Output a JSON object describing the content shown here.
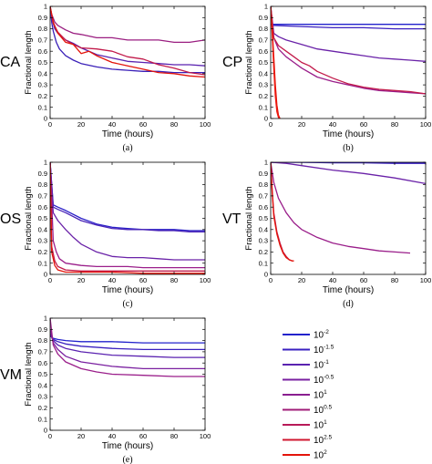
{
  "chart_data": [
    {
      "panel": "a",
      "tag": "CA",
      "caption": "(a)",
      "type": "line",
      "xlabel": "Time (hours)",
      "ylabel": "Fractional length",
      "xlim": [
        0,
        100
      ],
      "ylim": [
        0,
        1
      ],
      "xticks": [
        "0",
        "20",
        "40",
        "60",
        "80",
        "100"
      ],
      "yticks": [
        "0",
        "0.1",
        "0.2",
        "0.3",
        "0.4",
        "0.5",
        "0.6",
        "0.7",
        "0.8",
        "0.9",
        "1"
      ],
      "series": [
        {
          "color": "#3a20b8",
          "x": [
            0,
            1,
            2,
            4,
            6,
            10,
            15,
            20,
            30,
            40,
            50,
            60,
            70,
            80,
            90,
            100
          ],
          "y": [
            1,
            0.86,
            0.78,
            0.68,
            0.62,
            0.56,
            0.52,
            0.49,
            0.46,
            0.44,
            0.43,
            0.42,
            0.42,
            0.41,
            0.41,
            0.41
          ]
        },
        {
          "color": "#5a22b0",
          "x": [
            0,
            1,
            3,
            5,
            10,
            15,
            20,
            30,
            40,
            50,
            60,
            70,
            80,
            90,
            100
          ],
          "y": [
            1,
            0.9,
            0.8,
            0.76,
            0.7,
            0.67,
            0.63,
            0.57,
            0.54,
            0.51,
            0.5,
            0.49,
            0.48,
            0.48,
            0.47
          ]
        },
        {
          "color": "#9a1e80",
          "x": [
            0,
            1,
            3,
            5,
            10,
            15,
            20,
            30,
            40,
            50,
            60,
            70,
            80,
            90,
            100
          ],
          "y": [
            1,
            0.93,
            0.86,
            0.83,
            0.79,
            0.76,
            0.75,
            0.72,
            0.72,
            0.7,
            0.7,
            0.7,
            0.68,
            0.68,
            0.7
          ]
        },
        {
          "color": "#c21a4a",
          "x": [
            0,
            2,
            5,
            10,
            15,
            20,
            30,
            40,
            50,
            60,
            70,
            80,
            90,
            100
          ],
          "y": [
            1,
            0.85,
            0.77,
            0.7,
            0.66,
            0.63,
            0.62,
            0.6,
            0.55,
            0.53,
            0.48,
            0.45,
            0.41,
            0.39
          ]
        },
        {
          "color": "#e3140a",
          "x": [
            0,
            2,
            5,
            10,
            15,
            20,
            25,
            30,
            40,
            50,
            60,
            70,
            80,
            90,
            100
          ],
          "y": [
            1,
            0.86,
            0.76,
            0.68,
            0.66,
            0.58,
            0.6,
            0.56,
            0.5,
            0.47,
            0.44,
            0.41,
            0.4,
            0.38,
            0.37
          ]
        }
      ]
    },
    {
      "panel": "b",
      "tag": "CP",
      "caption": "(b)",
      "type": "line",
      "xlabel": "Time (hours)",
      "ylabel": "Fractional length",
      "xlim": [
        0,
        100
      ],
      "ylim": [
        0,
        1
      ],
      "xticks": [
        "0",
        "20",
        "40",
        "60",
        "80",
        "100"
      ],
      "yticks": [
        "0",
        "0.1",
        "0.2",
        "0.3",
        "0.4",
        "0.5",
        "0.6",
        "0.7",
        "0.8",
        "0.9",
        "1"
      ],
      "series": [
        {
          "color": "#2222cc",
          "x": [
            0,
            1,
            20,
            40,
            60,
            80,
            100
          ],
          "y": [
            0.84,
            0.84,
            0.84,
            0.84,
            0.84,
            0.84,
            0.84
          ]
        },
        {
          "color": "#3a20c0",
          "x": [
            0,
            1,
            20,
            40,
            60,
            80,
            100
          ],
          "y": [
            0.84,
            0.83,
            0.82,
            0.81,
            0.81,
            0.8,
            0.8
          ]
        },
        {
          "color": "#6a22a8",
          "x": [
            0,
            2,
            5,
            10,
            20,
            30,
            40,
            50,
            60,
            70,
            80,
            90,
            100
          ],
          "y": [
            1,
            0.76,
            0.73,
            0.7,
            0.66,
            0.62,
            0.6,
            0.58,
            0.56,
            0.54,
            0.53,
            0.52,
            0.51
          ]
        },
        {
          "color": "#9a1e8a",
          "x": [
            0,
            2,
            5,
            10,
            15,
            20,
            30,
            40,
            50,
            60,
            70,
            80,
            90,
            100
          ],
          "y": [
            1,
            0.72,
            0.62,
            0.55,
            0.5,
            0.45,
            0.37,
            0.33,
            0.3,
            0.27,
            0.25,
            0.24,
            0.23,
            0.22
          ]
        },
        {
          "color": "#c21a4a",
          "x": [
            0,
            2,
            5,
            10,
            15,
            20,
            25,
            30,
            40,
            50,
            60,
            70,
            80,
            90,
            100
          ],
          "y": [
            1,
            0.72,
            0.65,
            0.6,
            0.55,
            0.5,
            0.47,
            0.42,
            0.36,
            0.31,
            0.28,
            0.26,
            0.25,
            0.24,
            0.22
          ]
        },
        {
          "color": "#e3140a",
          "x": [
            0,
            1,
            2,
            3,
            4,
            5,
            6
          ],
          "y": [
            1,
            0.8,
            0.55,
            0.3,
            0.12,
            0.03,
            0
          ]
        },
        {
          "color": "#ee1a10",
          "x": [
            0,
            1,
            2,
            3,
            4,
            5,
            6
          ],
          "y": [
            1,
            0.75,
            0.45,
            0.2,
            0.06,
            0.01,
            0
          ]
        }
      ]
    },
    {
      "panel": "c",
      "tag": "OS",
      "caption": "(c)",
      "type": "line",
      "xlabel": "Time (hours)",
      "ylabel": "Fractional length",
      "xlim": [
        0,
        100
      ],
      "ylim": [
        0,
        1
      ],
      "xticks": [
        "0",
        "20",
        "40",
        "60",
        "80",
        "100"
      ],
      "yticks": [
        "0",
        "0.1",
        "0.2",
        "0.3",
        "0.4",
        "0.5",
        "0.6",
        "0.7",
        "0.8",
        "0.9",
        "1"
      ],
      "series": [
        {
          "color": "#2a20c8",
          "x": [
            0,
            2,
            5,
            10,
            20,
            30,
            40,
            50,
            60,
            70,
            80,
            90,
            100
          ],
          "y": [
            1,
            0.62,
            0.6,
            0.57,
            0.5,
            0.45,
            0.42,
            0.41,
            0.4,
            0.4,
            0.4,
            0.39,
            0.39
          ]
        },
        {
          "color": "#4a24b8",
          "x": [
            0,
            2,
            5,
            10,
            20,
            30,
            40,
            50,
            60,
            70,
            80,
            90,
            100
          ],
          "y": [
            1,
            0.6,
            0.58,
            0.55,
            0.48,
            0.44,
            0.41,
            0.4,
            0.4,
            0.39,
            0.39,
            0.38,
            0.38
          ]
        },
        {
          "color": "#6a22a8",
          "x": [
            0,
            2,
            5,
            10,
            15,
            20,
            30,
            40,
            50,
            60,
            70,
            80,
            90,
            100
          ],
          "y": [
            1,
            0.55,
            0.48,
            0.4,
            0.33,
            0.27,
            0.2,
            0.16,
            0.15,
            0.15,
            0.14,
            0.13,
            0.13,
            0.13
          ]
        },
        {
          "color": "#9a1e8a",
          "x": [
            0,
            2,
            4,
            6,
            10,
            20,
            30,
            40,
            50,
            60,
            70,
            80,
            90,
            100
          ],
          "y": [
            1,
            0.3,
            0.2,
            0.14,
            0.1,
            0.08,
            0.07,
            0.07,
            0.07,
            0.06,
            0.06,
            0.06,
            0.06,
            0.06
          ]
        },
        {
          "color": "#c21a4a",
          "x": [
            0,
            1,
            3,
            5,
            10,
            20,
            40,
            60,
            80,
            100
          ],
          "y": [
            1,
            0.25,
            0.12,
            0.07,
            0.04,
            0.03,
            0.03,
            0.03,
            0.03,
            0.03
          ]
        },
        {
          "color": "#e3140a",
          "x": [
            0,
            1,
            3,
            5,
            10,
            20,
            40,
            60,
            80,
            100
          ],
          "y": [
            1,
            0.2,
            0.08,
            0.04,
            0.02,
            0.02,
            0.02,
            0.01,
            0.01,
            0.01
          ]
        }
      ]
    },
    {
      "panel": "d",
      "tag": "VT",
      "caption": "(d)",
      "type": "line",
      "xlabel": "Time (hours)",
      "ylabel": "Fractional length",
      "xlim": [
        0,
        100
      ],
      "ylim": [
        0,
        1
      ],
      "xticks": [
        "0",
        "20",
        "40",
        "60",
        "80",
        "100"
      ],
      "yticks": [
        "0",
        "0.1",
        "0.2",
        "0.3",
        "0.4",
        "0.5",
        "0.6",
        "0.7",
        "0.8",
        "0.9",
        "1"
      ],
      "series": [
        {
          "color": "#2222cc",
          "x": [
            0,
            20,
            40,
            60,
            80,
            100
          ],
          "y": [
            1,
            1,
            1,
            1,
            1,
            1
          ]
        },
        {
          "color": "#3a20c0",
          "x": [
            0,
            20,
            40,
            60,
            80,
            100
          ],
          "y": [
            1,
            1,
            0.995,
            0.995,
            0.99,
            0.99
          ]
        },
        {
          "color": "#6a22a8",
          "x": [
            0,
            10,
            20,
            40,
            60,
            80,
            100
          ],
          "y": [
            1,
            0.99,
            0.97,
            0.93,
            0.9,
            0.86,
            0.81
          ]
        },
        {
          "color": "#9a1e8a",
          "x": [
            0,
            2,
            5,
            10,
            15,
            20,
            30,
            40,
            50,
            60,
            70,
            80,
            90
          ],
          "y": [
            1,
            0.82,
            0.68,
            0.55,
            0.46,
            0.4,
            0.33,
            0.28,
            0.25,
            0.23,
            0.21,
            0.2,
            0.19
          ]
        },
        {
          "color": "#c21a4a",
          "x": [
            0,
            1,
            2,
            4,
            6,
            8,
            10,
            12,
            14
          ],
          "y": [
            1,
            0.75,
            0.55,
            0.38,
            0.28,
            0.2,
            0.16,
            0.13,
            0.12
          ]
        },
        {
          "color": "#e3140a",
          "x": [
            0,
            1,
            2,
            4,
            6,
            8,
            10,
            12,
            14,
            15
          ],
          "y": [
            1,
            0.72,
            0.52,
            0.36,
            0.26,
            0.19,
            0.15,
            0.13,
            0.12,
            0.12
          ]
        }
      ]
    },
    {
      "panel": "e",
      "tag": "VM",
      "caption": "(e)",
      "type": "line",
      "xlabel": "Time (hours)",
      "ylabel": "Fractional length",
      "xlim": [
        0,
        100
      ],
      "ylim": [
        0,
        1
      ],
      "xticks": [
        "0",
        "20",
        "40",
        "60",
        "80",
        "100"
      ],
      "yticks": [
        "0",
        "0.1",
        "0.2",
        "0.3",
        "0.4",
        "0.5",
        "0.6",
        "0.7",
        "0.8",
        "0.9",
        "1"
      ],
      "series": [
        {
          "color": "#2222cc",
          "x": [
            0,
            2,
            5,
            10,
            20,
            40,
            60,
            80,
            100
          ],
          "y": [
            0.84,
            0.82,
            0.81,
            0.8,
            0.79,
            0.79,
            0.78,
            0.78,
            0.78
          ]
        },
        {
          "color": "#3a20c0",
          "x": [
            0,
            2,
            5,
            10,
            20,
            40,
            60,
            80,
            100
          ],
          "y": [
            0.85,
            0.81,
            0.79,
            0.77,
            0.75,
            0.73,
            0.72,
            0.72,
            0.72
          ]
        },
        {
          "color": "#5a22b0",
          "x": [
            0,
            2,
            5,
            10,
            20,
            40,
            60,
            80,
            100
          ],
          "y": [
            0.86,
            0.8,
            0.76,
            0.73,
            0.7,
            0.67,
            0.66,
            0.65,
            0.65
          ]
        },
        {
          "color": "#7a20a0",
          "x": [
            0,
            2,
            5,
            10,
            20,
            40,
            60,
            80,
            100
          ],
          "y": [
            0.9,
            0.78,
            0.72,
            0.66,
            0.61,
            0.57,
            0.55,
            0.55,
            0.55
          ]
        },
        {
          "color": "#9a1e8a",
          "x": [
            0,
            2,
            5,
            10,
            20,
            30,
            40,
            60,
            80,
            100
          ],
          "y": [
            1,
            0.76,
            0.68,
            0.61,
            0.55,
            0.52,
            0.5,
            0.49,
            0.48,
            0.48
          ]
        }
      ]
    }
  ],
  "legend": {
    "entries": [
      {
        "base": "10",
        "exp": "-2",
        "color": "#2222cc"
      },
      {
        "base": "10",
        "exp": "-1.5",
        "color": "#3a20c0"
      },
      {
        "base": "10",
        "exp": "-1",
        "color": "#5a22b0"
      },
      {
        "base": "10",
        "exp": "-0.5",
        "color": "#7a20a0"
      },
      {
        "base": "10",
        "exp": "1",
        "color": "#8a1e90"
      },
      {
        "base": "10",
        "exp": "0.5",
        "color": "#a01c78"
      },
      {
        "base": "10",
        "exp": "1",
        "color": "#b81a58"
      },
      {
        "base": "10",
        "exp": "2.5",
        "color": "#d01830"
      },
      {
        "base": "10",
        "exp": "2",
        "color": "#e3140a"
      }
    ]
  }
}
